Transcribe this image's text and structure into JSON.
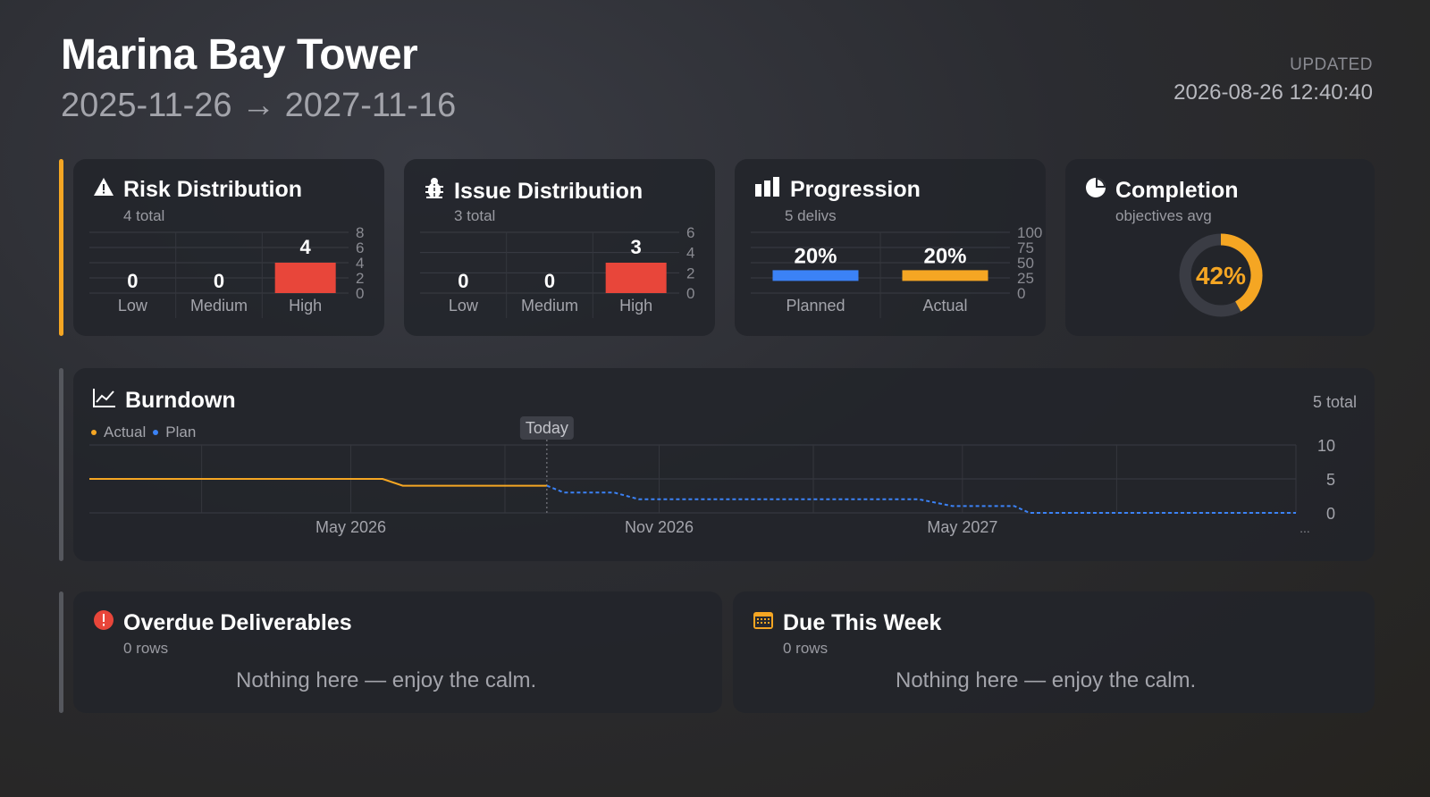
{
  "project": {
    "title": "Marina Bay Tower",
    "date_range": "2025-11-26 → 2027-11-16"
  },
  "updated": {
    "label": "UPDATED",
    "value": "2026-08-26 12:40:40"
  },
  "colors": {
    "accent_orange": "#f5a623",
    "high_red": "#e8463a",
    "plan_blue": "#3b82f6",
    "alert_red": "#e8463a"
  },
  "risk": {
    "title": "Risk Distribution",
    "subtitle": "4 total",
    "icon": "warning-icon"
  },
  "issue": {
    "title": "Issue Distribution",
    "subtitle": "3 total",
    "icon": "bug-icon"
  },
  "progression": {
    "title": "Progression",
    "subtitle": "5 delivs",
    "icon": "bar-chart-icon"
  },
  "completion": {
    "title": "Completion",
    "subtitle": "objectives avg",
    "icon": "pie-chart-icon",
    "value_label": "42%"
  },
  "burndown": {
    "title": "Burndown",
    "total": "5 total",
    "legend_actual": "Actual",
    "legend_plan": "Plan",
    "today_label": "Today",
    "more_label": "..."
  },
  "overdue": {
    "title": "Overdue Deliverables",
    "subtitle": "0 rows",
    "empty": "Nothing here — enjoy the calm.",
    "icon": "alert-circle-icon"
  },
  "due_week": {
    "title": "Due This Week",
    "subtitle": "0 rows",
    "empty": "Nothing here — enjoy the calm.",
    "icon": "calendar-icon"
  },
  "chart_data": [
    {
      "type": "bar",
      "title": "Risk Distribution",
      "categories": [
        "Low",
        "Medium",
        "High"
      ],
      "values": [
        0,
        0,
        4
      ],
      "ylim": [
        0,
        8
      ],
      "yticks": [
        0,
        2,
        4,
        6,
        8
      ]
    },
    {
      "type": "bar",
      "title": "Issue Distribution",
      "categories": [
        "Low",
        "Medium",
        "High"
      ],
      "values": [
        0,
        0,
        3
      ],
      "ylim": [
        0,
        6
      ],
      "yticks": [
        0,
        2,
        4,
        6
      ]
    },
    {
      "type": "bar",
      "title": "Progression",
      "categories": [
        "Planned",
        "Actual"
      ],
      "values": [
        20,
        20
      ],
      "value_labels": [
        "20%",
        "20%"
      ],
      "ylim": [
        0,
        100
      ],
      "yticks": [
        0,
        25,
        50,
        75,
        100
      ]
    },
    {
      "type": "pie",
      "title": "Completion",
      "values": [
        42,
        58
      ],
      "center_label": "42%"
    },
    {
      "type": "line",
      "title": "Burndown",
      "ylim": [
        0,
        10
      ],
      "yticks": [
        0,
        5,
        10
      ],
      "xlim": [
        "2025-11-26",
        "2027-11-16"
      ],
      "xticks": [
        "May 2026",
        "Nov 2026",
        "May 2027"
      ],
      "today": "2026-08-26",
      "series": [
        {
          "name": "Actual",
          "points": [
            [
              "2025-11-26",
              5
            ],
            [
              "2026-05-20",
              5
            ],
            [
              "2026-06-01",
              4
            ],
            [
              "2026-08-26",
              4
            ]
          ]
        },
        {
          "name": "Plan",
          "points": [
            [
              "2026-08-26",
              4
            ],
            [
              "2026-09-05",
              3
            ],
            [
              "2026-10-05",
              3
            ],
            [
              "2026-10-20",
              2
            ],
            [
              "2027-04-05",
              2
            ],
            [
              "2027-04-25",
              1
            ],
            [
              "2027-06-01",
              1
            ],
            [
              "2027-06-10",
              0
            ],
            [
              "2027-11-16",
              0
            ]
          ]
        }
      ]
    }
  ]
}
